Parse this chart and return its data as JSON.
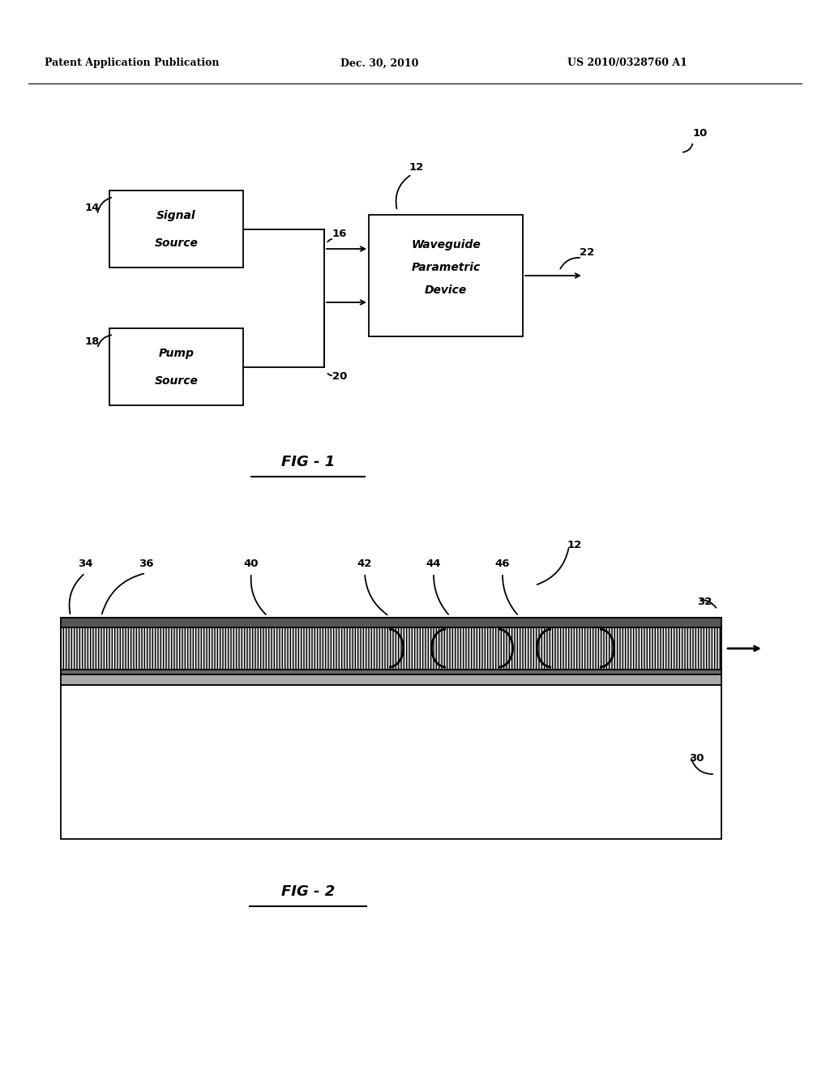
{
  "header_left": "Patent Application Publication",
  "header_center": "Dec. 30, 2010",
  "header_right": "US 2010/0328760 A1",
  "background_color": "#ffffff"
}
